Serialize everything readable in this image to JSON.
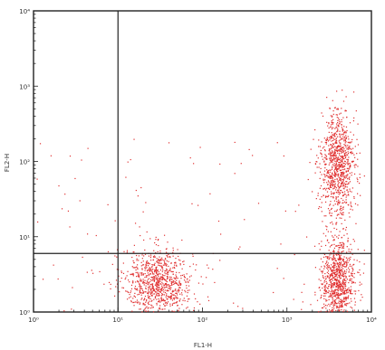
{
  "chart_data": {
    "type": "scatter",
    "scale": "log",
    "xlim_decades": [
      0,
      4
    ],
    "ylim_decades": [
      0,
      4
    ],
    "xlabel": "FL1-H",
    "ylabel": "FL2-H",
    "x_ticks": [
      "10⁰",
      "10¹",
      "10²",
      "10³",
      "10⁴"
    ],
    "y_ticks": [
      "10⁰",
      "10¹",
      "10²",
      "10³",
      "10⁴"
    ],
    "quadrant_gate": {
      "x": 10,
      "y": 6
    },
    "grid": false,
    "point_color": "#e03030",
    "clusters": [
      {
        "center_x": 30,
        "center_y": 2.5,
        "spread_x_decades": 0.2,
        "spread_y_decades": 0.22
      },
      {
        "center_x": 4000,
        "center_y": 2.5,
        "spread_x_decades": 0.1,
        "spread_y_decades": 0.3
      },
      {
        "center_x": 4000,
        "center_y": 90,
        "spread_x_decades": 0.1,
        "spread_y_decades": 0.35
      }
    ]
  }
}
